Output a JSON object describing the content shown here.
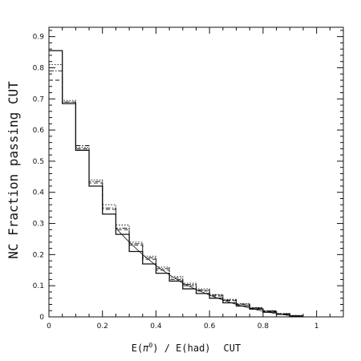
{
  "chart_data": {
    "type": "line",
    "subtype": "step-histogram",
    "title": "",
    "xlabel_parts": {
      "prefix": "E(",
      "symbol": "π",
      "superscript": "0",
      "suffix": ") / E(had)",
      "tag": "CUT"
    },
    "ylabel": "NC Fraction passing CUT",
    "xlim": [
      0,
      1.1
    ],
    "ylim": [
      0,
      0.93
    ],
    "x_ticks": [
      0,
      0.2,
      0.4,
      0.6,
      0.8,
      1
    ],
    "x_tick_labels": [
      "0",
      "0.2",
      "0.4",
      "0.6",
      "0.8",
      "1"
    ],
    "y_ticks": [
      0,
      0.1,
      0.2,
      0.3,
      0.4,
      0.5,
      0.6,
      0.7,
      0.8,
      0.9
    ],
    "y_tick_labels": [
      "0",
      "0.1",
      "0.2",
      "0.3",
      "0.4",
      "0.5",
      "0.6",
      "0.7",
      "0.8",
      "0.9"
    ],
    "bin_edges": [
      0,
      0.05,
      0.1,
      0.15,
      0.2,
      0.25,
      0.3,
      0.35,
      0.4,
      0.45,
      0.5,
      0.55,
      0.6,
      0.65,
      0.7,
      0.75,
      0.8,
      0.85,
      0.9,
      0.95
    ],
    "series": [
      {
        "style": "solid",
        "values": [
          0.855,
          0.685,
          0.535,
          0.42,
          0.33,
          0.265,
          0.21,
          0.17,
          0.14,
          0.115,
          0.09,
          0.075,
          0.06,
          0.045,
          0.035,
          0.025,
          0.015,
          0.008,
          0.003
        ]
      },
      {
        "style": "dashed",
        "values": [
          0.76,
          0.69,
          0.54,
          0.43,
          0.345,
          0.28,
          0.23,
          0.185,
          0.15,
          0.12,
          0.1,
          0.083,
          0.067,
          0.052,
          0.04,
          0.028,
          0.018,
          0.01,
          0.004
        ]
      },
      {
        "style": "dotted",
        "values": [
          0.81,
          0.695,
          0.545,
          0.44,
          0.36,
          0.295,
          0.24,
          0.195,
          0.16,
          0.13,
          0.108,
          0.09,
          0.072,
          0.056,
          0.043,
          0.03,
          0.02,
          0.011,
          0.005
        ]
      },
      {
        "style": "dash-dot",
        "values": [
          0.79,
          0.69,
          0.55,
          0.435,
          0.35,
          0.285,
          0.235,
          0.19,
          0.155,
          0.125,
          0.104,
          0.086,
          0.07,
          0.054,
          0.041,
          0.029,
          0.019,
          0.01,
          0.004
        ]
      }
    ],
    "fit_line": {
      "style": "thin-solid",
      "x": [
        0.25,
        0.3,
        0.35,
        0.4,
        0.45,
        0.5,
        0.55,
        0.6,
        0.65,
        0.7,
        0.75,
        0.8,
        0.85,
        0.9,
        0.95
      ],
      "y": [
        0.285,
        0.24,
        0.2,
        0.165,
        0.135,
        0.108,
        0.088,
        0.07,
        0.054,
        0.04,
        0.028,
        0.018,
        0.01,
        0.004,
        0.0
      ]
    },
    "grid": false,
    "legend": "none"
  }
}
